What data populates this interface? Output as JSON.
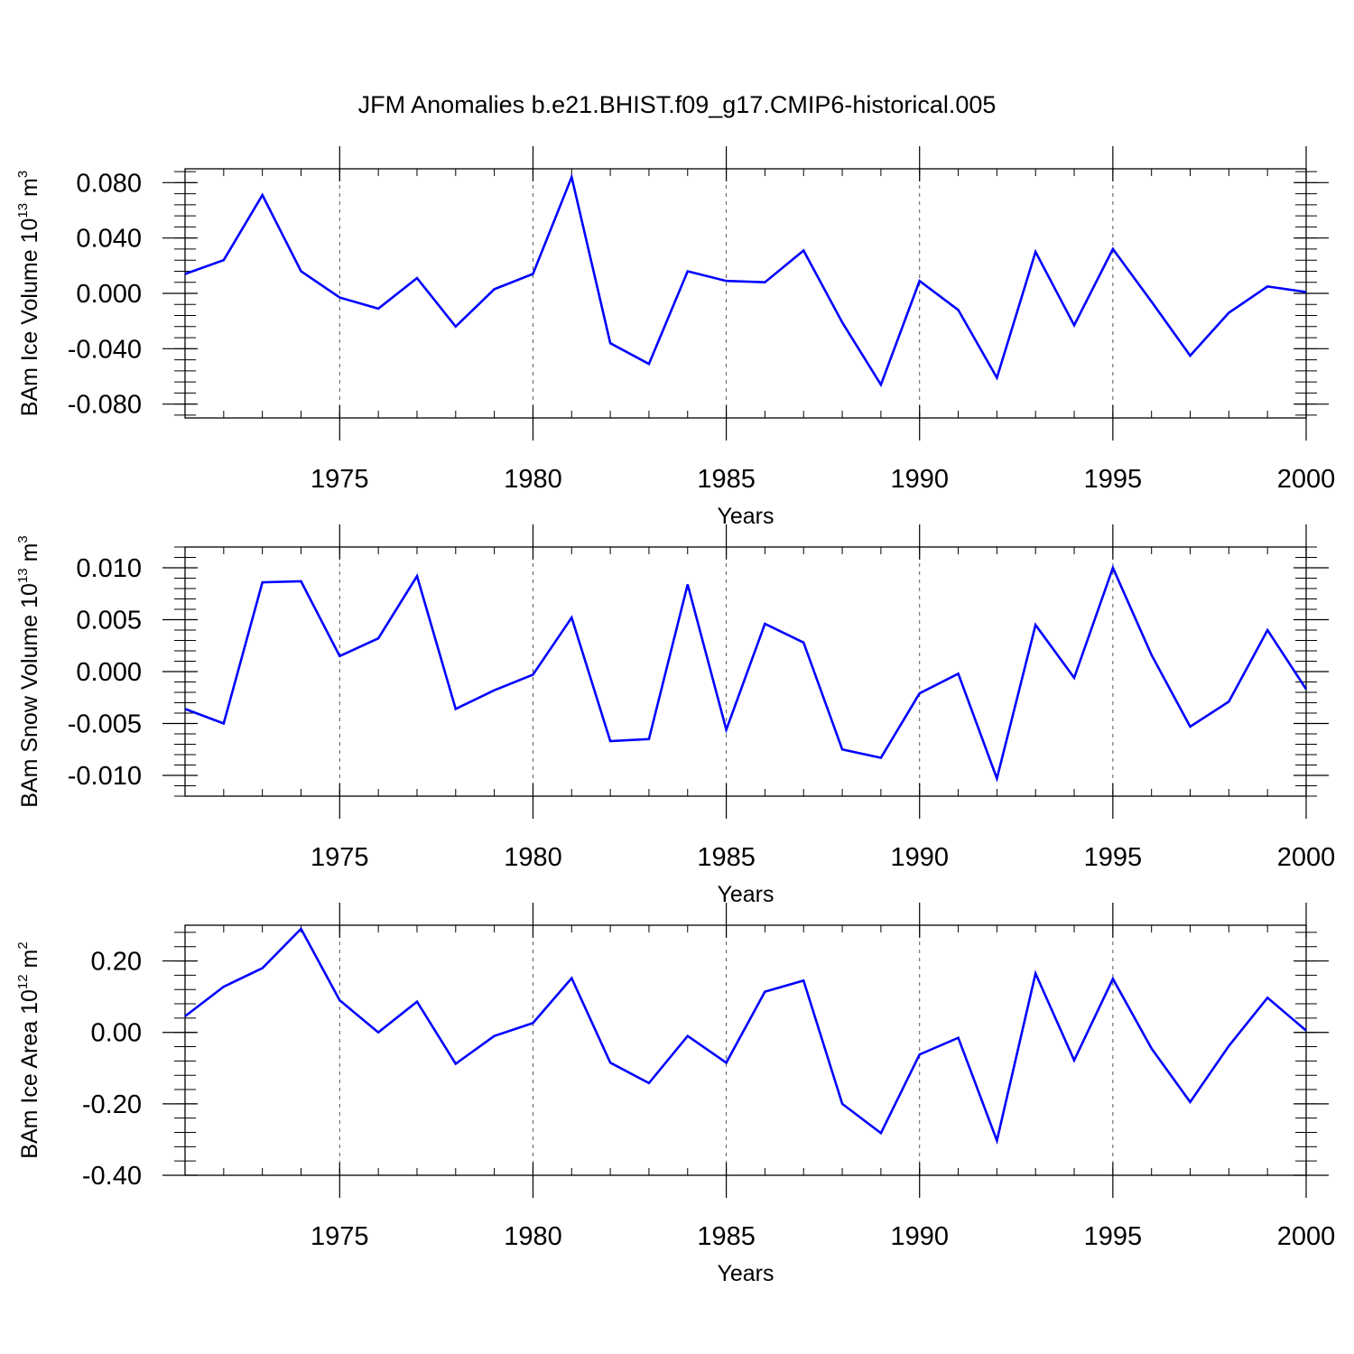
{
  "title": "JFM Anomalies b.e21.BHIST.f09_g17.CMIP6-historical.005",
  "colors": {
    "line": "#0000ff",
    "axis": "#000000",
    "grid": "#555555"
  },
  "chart_data": [
    {
      "type": "line",
      "ylabel_prefix": "BAm Ice Volume 10",
      "ylabel_exp": "13",
      "ylabel_unit": " m",
      "ylabel_unit_exp": "3",
      "xlabel": "Years",
      "xlim": [
        1971,
        2000
      ],
      "ylim": [
        -0.09,
        0.09
      ],
      "grid": "vertical dashed at major x ticks",
      "xticks": [
        1975,
        1980,
        1985,
        1990,
        1995,
        2000
      ],
      "xtick_labels": [
        "1975",
        "1980",
        "1985",
        "1990",
        "1995",
        "2000"
      ],
      "yticks": [
        0.08,
        0.04,
        0.0,
        -0.04,
        -0.08
      ],
      "ytick_labels": [
        "0.080",
        "0.040",
        "0.000",
        "-0.040",
        "-0.080"
      ],
      "x": [
        1971,
        1972,
        1973,
        1974,
        1975,
        1976,
        1977,
        1978,
        1979,
        1980,
        1981,
        1982,
        1983,
        1984,
        1985,
        1986,
        1987,
        1988,
        1989,
        1990,
        1991,
        1992,
        1993,
        1994,
        1995,
        1996,
        1997,
        1998,
        1999,
        2000
      ],
      "y": [
        0.014,
        0.024,
        0.071,
        0.016,
        -0.003,
        -0.011,
        0.011,
        -0.024,
        0.003,
        0.014,
        0.084,
        -0.036,
        -0.051,
        0.016,
        0.009,
        0.008,
        0.031,
        -0.021,
        -0.066,
        0.009,
        -0.012,
        -0.061,
        0.03,
        -0.023,
        0.032,
        -0.006,
        -0.045,
        -0.014,
        0.005,
        0.001
      ]
    },
    {
      "type": "line",
      "ylabel_prefix": "BAm Snow Volume 10",
      "ylabel_exp": "13",
      "ylabel_unit": " m",
      "ylabel_unit_exp": "3",
      "xlabel": "Years",
      "xlim": [
        1971,
        2000
      ],
      "ylim": [
        -0.012,
        0.012
      ],
      "grid": "vertical dashed at major x ticks",
      "xticks": [
        1975,
        1980,
        1985,
        1990,
        1995,
        2000
      ],
      "xtick_labels": [
        "1975",
        "1980",
        "1985",
        "1990",
        "1995",
        "2000"
      ],
      "yticks": [
        0.01,
        0.005,
        0.0,
        -0.005,
        -0.01
      ],
      "ytick_labels": [
        "0.010",
        "0.005",
        "0.000",
        "-0.005",
        "-0.010"
      ],
      "x": [
        1971,
        1972,
        1973,
        1974,
        1975,
        1976,
        1977,
        1978,
        1979,
        1980,
        1981,
        1982,
        1983,
        1984,
        1985,
        1986,
        1987,
        1988,
        1989,
        1990,
        1991,
        1992,
        1993,
        1994,
        1995,
        1996,
        1997,
        1998,
        1999,
        2000
      ],
      "y": [
        -0.0036,
        -0.005,
        0.0086,
        0.0087,
        0.0015,
        0.0032,
        0.0092,
        -0.0036,
        -0.0018,
        -0.0003,
        0.0052,
        -0.0067,
        -0.0065,
        0.0084,
        -0.0056,
        0.0046,
        0.0028,
        -0.0075,
        -0.0083,
        -0.0021,
        -0.0002,
        -0.0103,
        0.0045,
        -0.0006,
        0.01,
        0.0016,
        -0.0053,
        -0.0029,
        0.004,
        -0.0017
      ]
    },
    {
      "type": "line",
      "ylabel_prefix": "BAm Ice Area 10",
      "ylabel_exp": "12",
      "ylabel_unit": " m",
      "ylabel_unit_exp": "2",
      "xlabel": "Years",
      "xlim": [
        1971,
        2000
      ],
      "ylim": [
        -0.4,
        0.3
      ],
      "grid": "vertical dashed at major x ticks",
      "xticks": [
        1975,
        1980,
        1985,
        1990,
        1995,
        2000
      ],
      "xtick_labels": [
        "1975",
        "1980",
        "1985",
        "1990",
        "1995",
        "2000"
      ],
      "yticks": [
        0.2,
        0.0,
        -0.2,
        -0.4
      ],
      "ytick_labels": [
        "0.20",
        "0.00",
        "-0.20",
        "-0.40"
      ],
      "x": [
        1971,
        1972,
        1973,
        1974,
        1975,
        1976,
        1977,
        1978,
        1979,
        1980,
        1981,
        1982,
        1983,
        1984,
        1985,
        1986,
        1987,
        1988,
        1989,
        1990,
        1991,
        1992,
        1993,
        1994,
        1995,
        1996,
        1997,
        1998,
        1999,
        2000
      ],
      "y": [
        0.045,
        0.128,
        0.18,
        0.29,
        0.09,
        0.0,
        0.086,
        -0.088,
        -0.01,
        0.026,
        0.152,
        -0.085,
        -0.142,
        -0.01,
        -0.085,
        0.114,
        0.145,
        -0.2,
        -0.282,
        -0.062,
        -0.015,
        -0.303,
        0.165,
        -0.078,
        0.15,
        -0.045,
        -0.195,
        -0.038,
        0.097,
        0.005
      ]
    }
  ]
}
